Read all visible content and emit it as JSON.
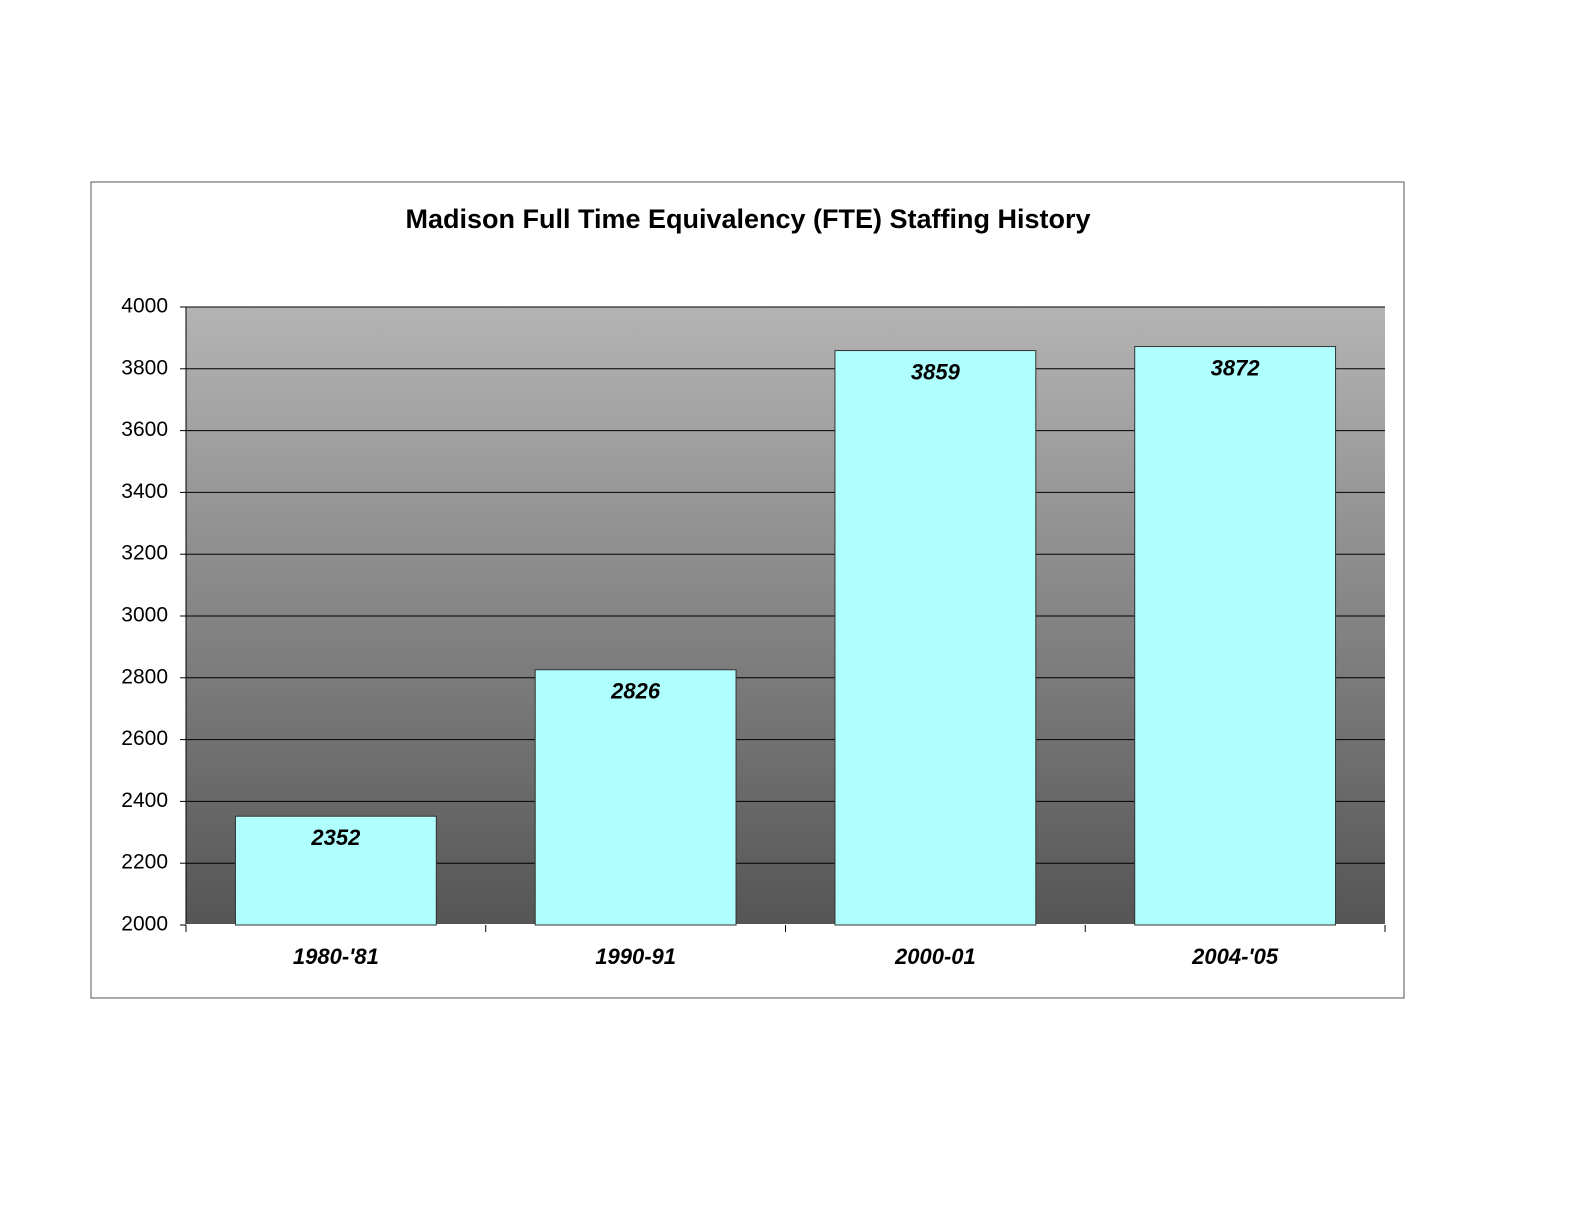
{
  "chart_data": {
    "type": "bar",
    "title": "Madison Full Time Equivalency (FTE) Staffing History",
    "categories": [
      "1980-'81",
      "1990-91",
      "2000-01",
      "2004-'05"
    ],
    "values": [
      2352,
      2826,
      3859,
      3872
    ],
    "color": "#b0ffff",
    "ylim": [
      2000,
      4000
    ],
    "yticks": [
      2000,
      2200,
      2400,
      2600,
      2800,
      3000,
      3200,
      3400,
      3600,
      3800,
      4000
    ],
    "grid": true
  }
}
